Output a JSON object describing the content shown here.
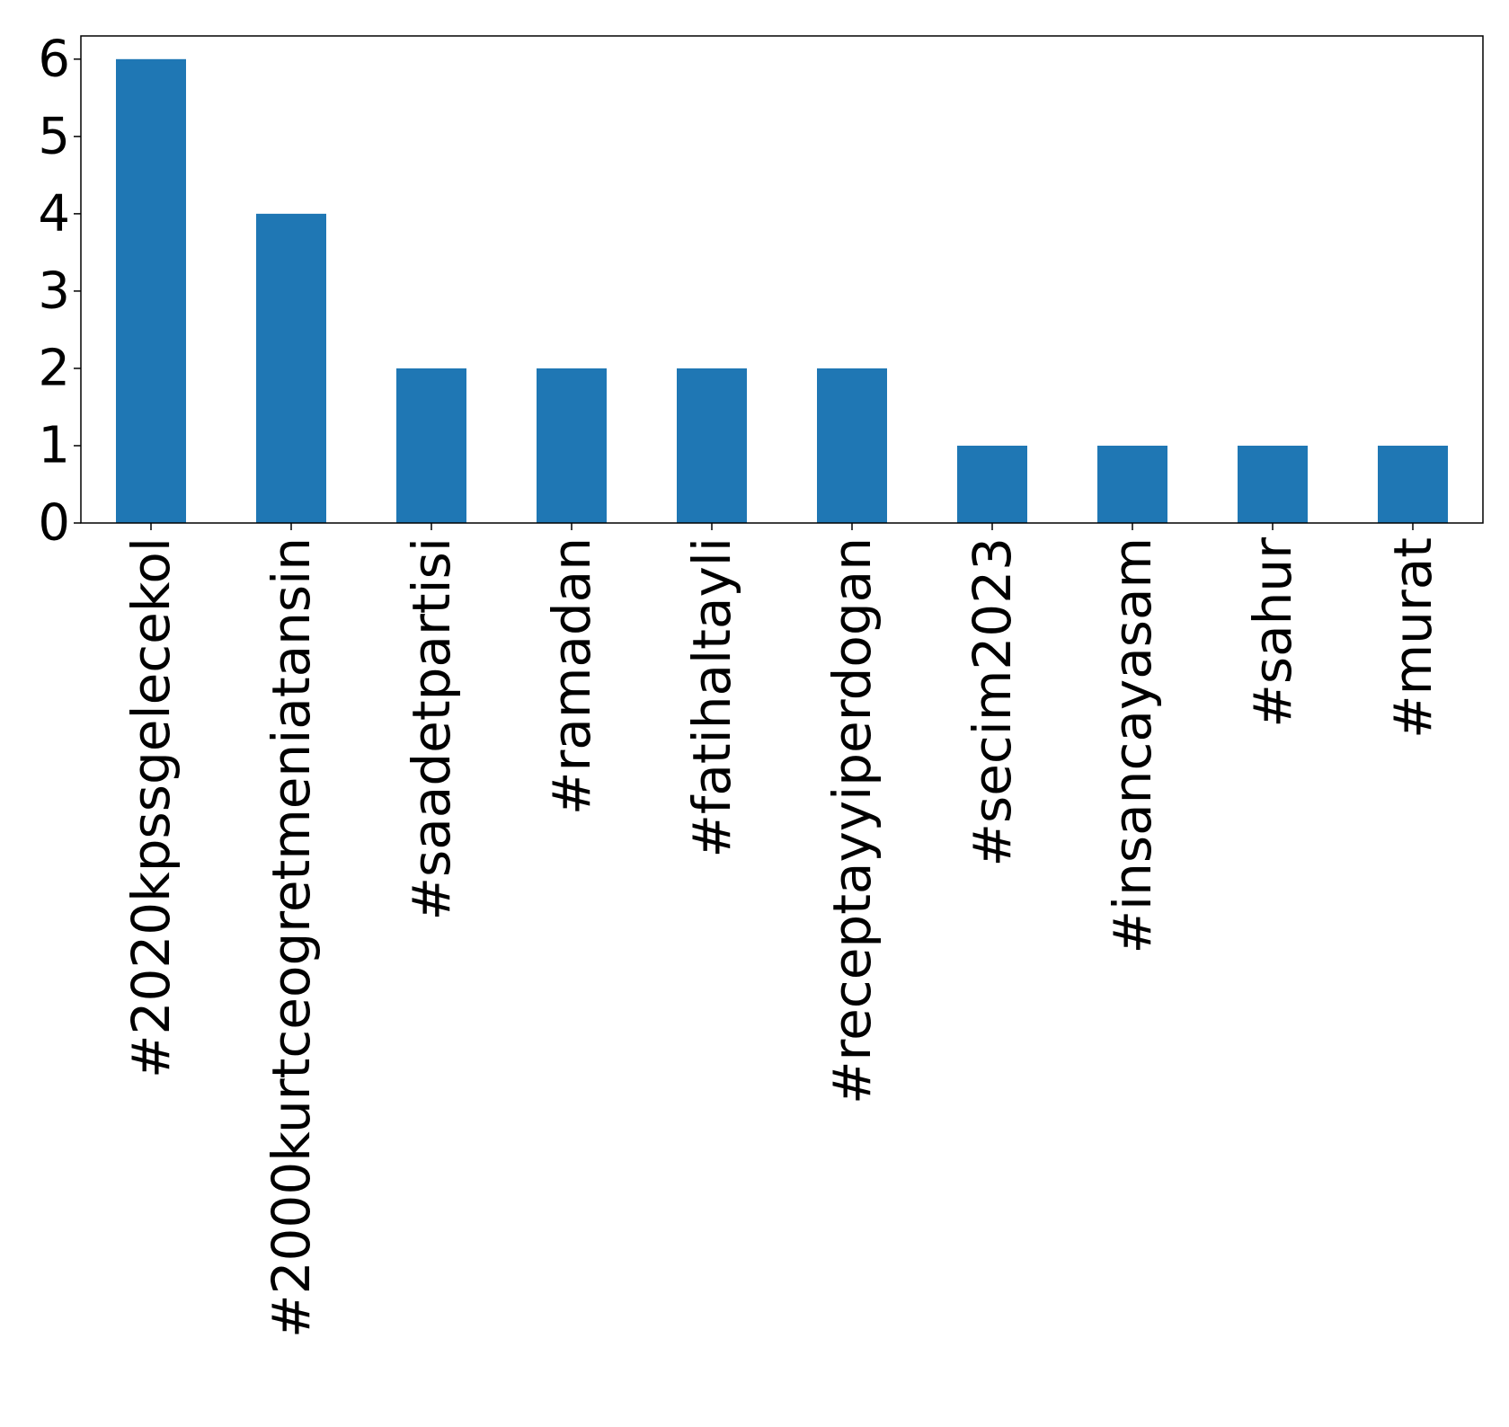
{
  "chart_data": {
    "type": "bar",
    "title": "",
    "xlabel": "",
    "ylabel": "",
    "categories": [
      "#2020kpssgelecekol",
      "#2000kurtceogretmeniatansin",
      "#saadetpartisi",
      "#ramadan",
      "#fatihaltayli",
      "#receptayyiperdogan",
      "#secim2023",
      "#insancayasam",
      "#sahur",
      "#murat"
    ],
    "values": [
      6,
      4,
      2,
      2,
      2,
      2,
      1,
      1,
      1,
      1
    ],
    "ylim": [
      0,
      6.3
    ],
    "yticks": [
      "0",
      "1",
      "2",
      "3",
      "4",
      "5",
      "6"
    ],
    "bar_color": "#1f77b4",
    "grid": false,
    "legend": "none"
  }
}
